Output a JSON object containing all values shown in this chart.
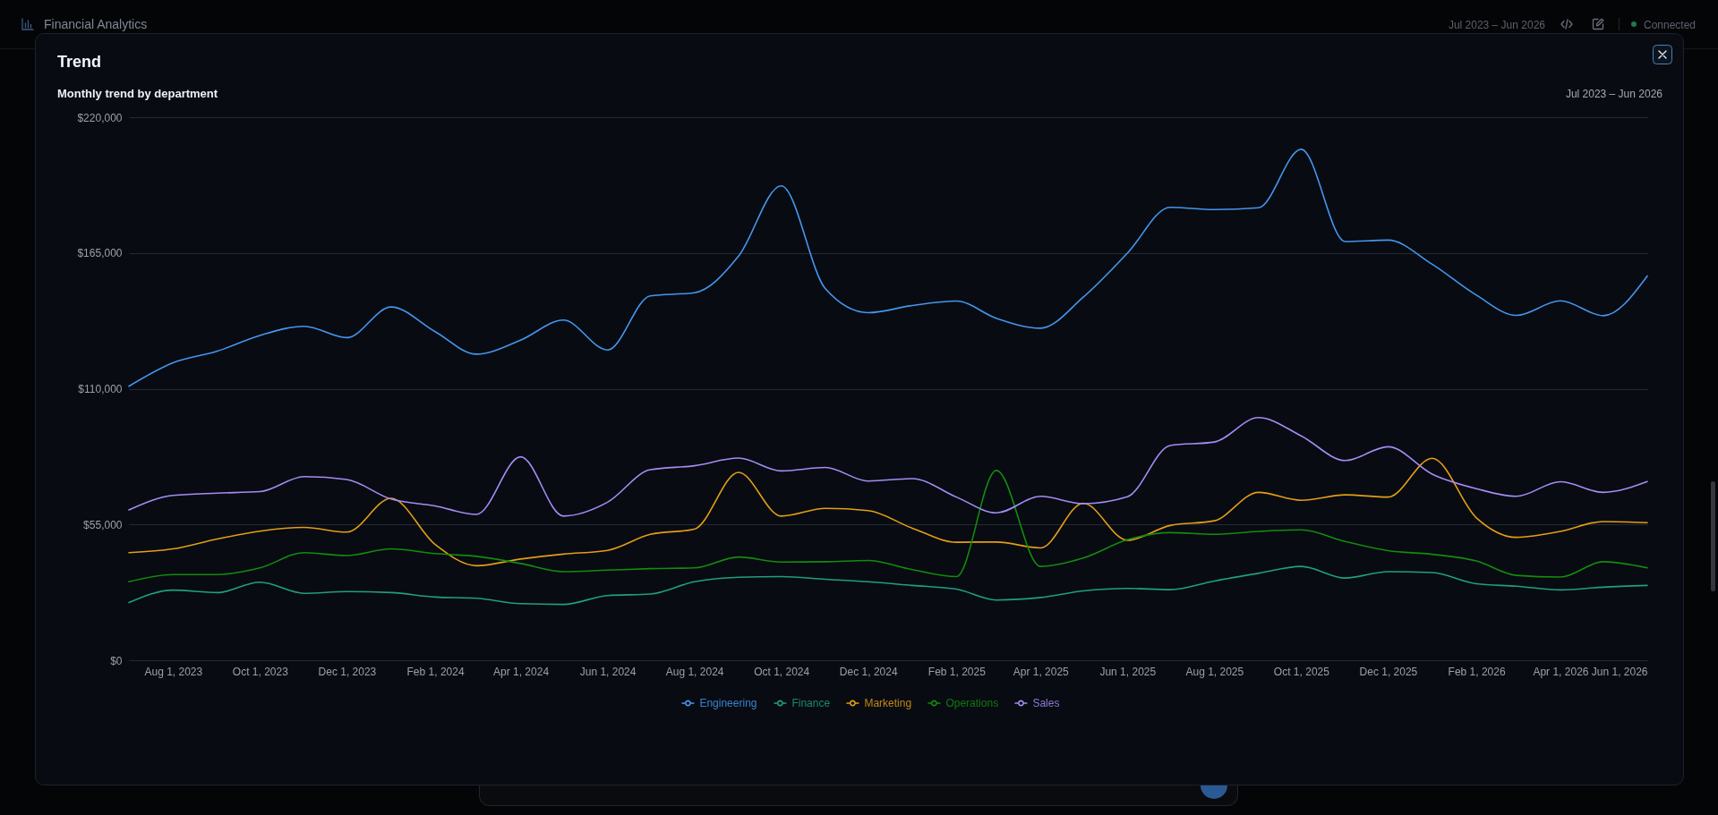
{
  "chart_data": {
    "type": "line",
    "title": "Trend",
    "subtitle": "Monthly trend by department",
    "annotations": [
      "Jul 2023 – Jun 2026",
      "Financial Analytics",
      "Jul 2023 – Jun 2026",
      "Connected"
    ],
    "x": [
      "2023-07",
      "2023-08",
      "2023-09",
      "2023-10",
      "2023-11",
      "2023-12",
      "2024-01",
      "2024-02",
      "2024-03",
      "2024-04",
      "2024-05",
      "2024-06",
      "2024-07",
      "2024-08",
      "2024-09",
      "2024-10",
      "2024-11",
      "2024-12",
      "2025-01",
      "2025-02",
      "2025-03",
      "2025-04",
      "2025-05",
      "2025-06",
      "2025-07",
      "2025-08",
      "2025-09",
      "2025-10",
      "2025-11",
      "2025-12",
      "2026-01",
      "2026-02",
      "2026-03",
      "2026-04",
      "2026-05",
      "2026-06"
    ],
    "xlim": [
      "2023-07",
      "2026-06"
    ],
    "xticks": [
      {
        "value": "2023-08",
        "label": "Aug 1, 2023"
      },
      {
        "value": "2023-10",
        "label": "Oct 1, 2023"
      },
      {
        "value": "2023-12",
        "label": "Dec 1, 2023"
      },
      {
        "value": "2024-02",
        "label": "Feb 1, 2024"
      },
      {
        "value": "2024-04",
        "label": "Apr 1, 2024"
      },
      {
        "value": "2024-06",
        "label": "Jun 1, 2024"
      },
      {
        "value": "2024-08",
        "label": "Aug 1, 2024"
      },
      {
        "value": "2024-10",
        "label": "Oct 1, 2024"
      },
      {
        "value": "2024-12",
        "label": "Dec 1, 2024"
      },
      {
        "value": "2025-02",
        "label": "Feb 1, 2025"
      },
      {
        "value": "2025-04",
        "label": "Apr 1, 2025"
      },
      {
        "value": "2025-06",
        "label": "Jun 1, 2025"
      },
      {
        "value": "2025-08",
        "label": "Aug 1, 2025"
      },
      {
        "value": "2025-10",
        "label": "Oct 1, 2025"
      },
      {
        "value": "2025-12",
        "label": "Dec 1, 2025"
      },
      {
        "value": "2026-02",
        "label": "Feb 1, 2026"
      },
      {
        "value": "2026-04",
        "label": "Apr 1, 2026"
      },
      {
        "value": "2026-06",
        "label": "Jun 1, 2026"
      }
    ],
    "ylim": [
      0,
      220000
    ],
    "yticks": [
      {
        "value": 0,
        "label": "$0"
      },
      {
        "value": 55000,
        "label": "$55,000"
      },
      {
        "value": 110000,
        "label": "$110,000"
      },
      {
        "value": 165000,
        "label": "$165,000"
      },
      {
        "value": 220000,
        "label": "$220,000"
      }
    ],
    "grid": "y",
    "legend": "bottom",
    "line_style": "solid",
    "series": [
      {
        "name": "Engineering",
        "color": "#4596ee",
        "values": [
          111000,
          120500,
          125200,
          131600,
          135300,
          130700,
          143100,
          133100,
          124000,
          129700,
          137800,
          125700,
          147600,
          148900,
          163700,
          192200,
          150500,
          140800,
          143700,
          145500,
          138500,
          134500,
          147100,
          164900,
          183500,
          182600,
          183300,
          207000,
          169600,
          170200,
          160400,
          147900,
          139700,
          145600,
          139600,
          155700
        ]
      },
      {
        "name": "Finance",
        "color": "#1fa07a",
        "values": [
          23400,
          28400,
          27400,
          31600,
          27100,
          27800,
          27400,
          25600,
          25100,
          22900,
          22600,
          26200,
          26800,
          31800,
          33600,
          33900,
          32800,
          31800,
          30300,
          28800,
          24400,
          25400,
          28100,
          29100,
          28600,
          32100,
          35200,
          38000,
          33300,
          35900,
          35500,
          31000,
          30000,
          28500,
          29600,
          30300
        ]
      },
      {
        "name": "Marketing",
        "color": "#e39e16",
        "values": [
          43600,
          45100,
          49100,
          52300,
          53800,
          51900,
          65600,
          46900,
          38300,
          41000,
          43000,
          44500,
          51000,
          53100,
          76100,
          58400,
          61500,
          60600,
          53500,
          47800,
          47900,
          45500,
          63600,
          48600,
          54600,
          56500,
          68000,
          64800,
          67000,
          66100,
          81800,
          57700,
          49800,
          52200,
          56200,
          55700
        ]
      },
      {
        "name": "Operations",
        "color": "#138c0e",
        "values": [
          31800,
          34700,
          34700,
          37400,
          43600,
          42400,
          45100,
          43200,
          42100,
          39200,
          35900,
          36500,
          37100,
          37400,
          41800,
          39800,
          39900,
          40400,
          36700,
          33900,
          76900,
          38000,
          41400,
          48800,
          51700,
          51000,
          52200,
          52800,
          48100,
          44400,
          42900,
          40200,
          34400,
          33700,
          39900,
          37400
        ]
      },
      {
        "name": "Sales",
        "color": "#a58cf4",
        "values": [
          60900,
          66800,
          67700,
          68300,
          74400,
          73200,
          65300,
          62500,
          59100,
          82400,
          58400,
          64000,
          77200,
          78800,
          81900,
          76700,
          78100,
          72600,
          73600,
          66100,
          59700,
          66400,
          63400,
          66200,
          87000,
          88400,
          98300,
          90900,
          80900,
          86500,
          75400,
          69500,
          66400,
          72300,
          68000,
          72400
        ]
      }
    ]
  }
}
